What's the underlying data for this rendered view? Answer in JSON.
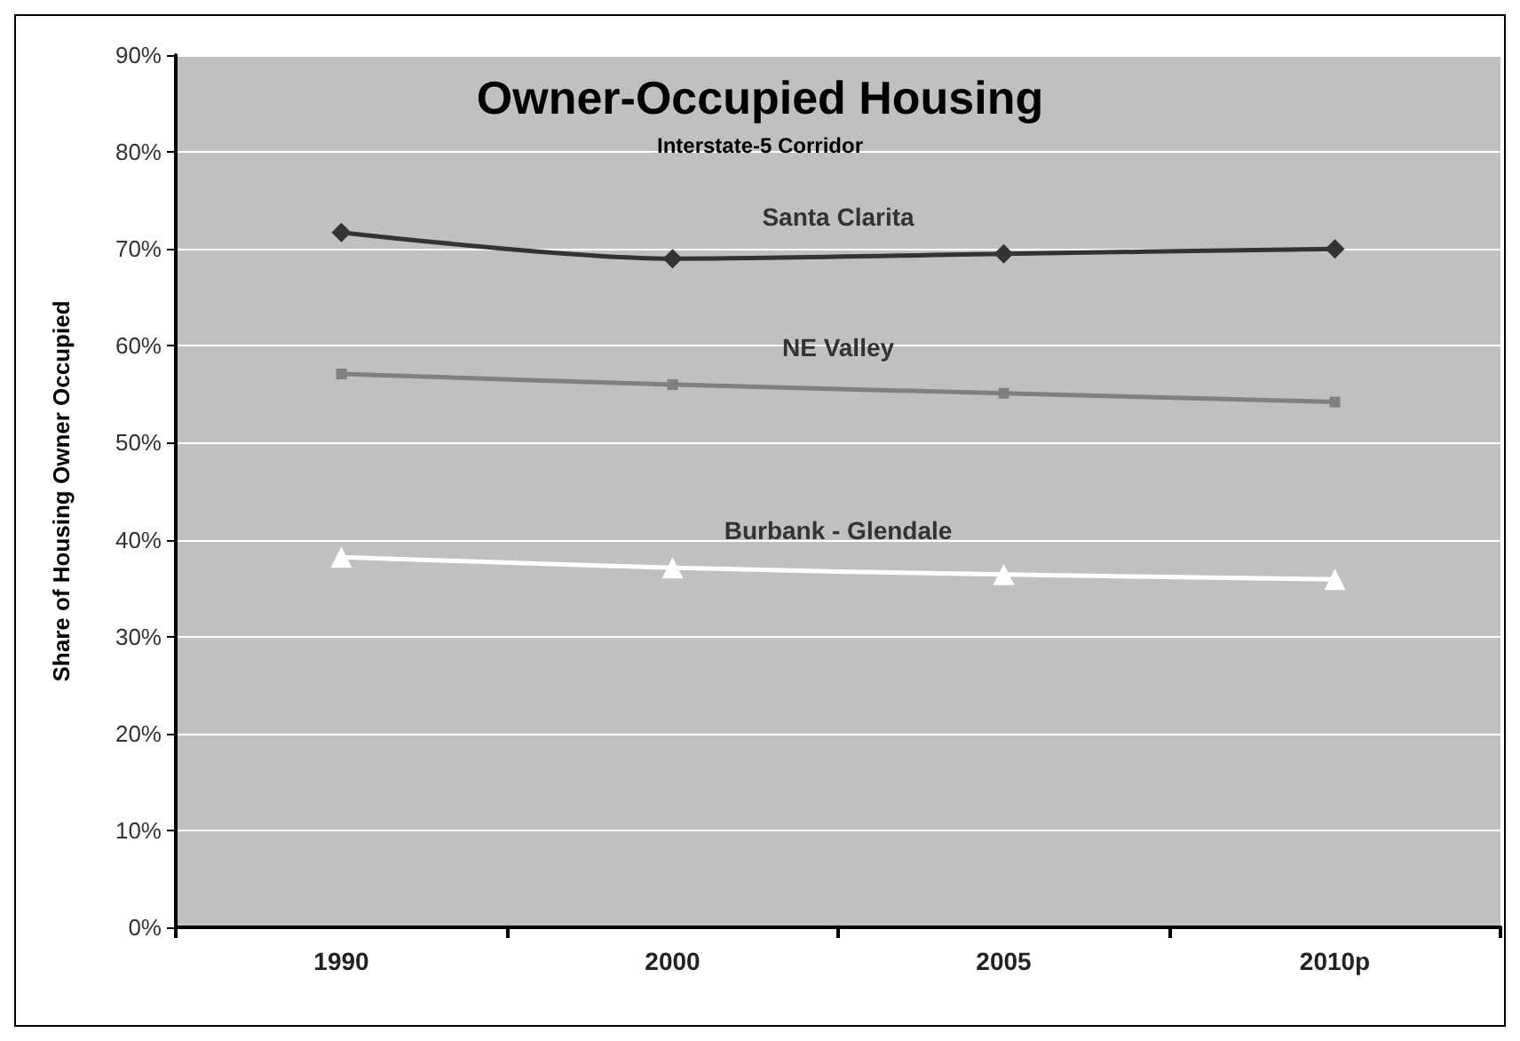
{
  "chart_data": {
    "type": "line",
    "title": "Owner-Occupied Housing",
    "subtitle": "Interstate-5 Corridor",
    "ylabel": "Share of Housing Owner Occupied",
    "categories": [
      "1990",
      "2000",
      "2005",
      "2010p"
    ],
    "series": [
      {
        "name": "Santa Clarita",
        "color": "#333333",
        "marker": "diamond",
        "values": [
          71.7,
          69.0,
          69.5,
          70.0
        ]
      },
      {
        "name": "NE Valley",
        "color": "#808080",
        "marker": "square",
        "values": [
          57.1,
          56.0,
          55.1,
          54.2
        ]
      },
      {
        "name": "Burbank - Glendale",
        "color": "#ffffff",
        "marker": "triangle",
        "values": [
          38.2,
          37.1,
          36.4,
          35.9
        ]
      }
    ],
    "ylim": [
      0,
      90
    ],
    "yticks": [
      {
        "value": 0,
        "label": "0%"
      },
      {
        "value": 10,
        "label": "10%"
      },
      {
        "value": 20,
        "label": "20%"
      },
      {
        "value": 30,
        "label": "30%"
      },
      {
        "value": 40,
        "label": "40%"
      },
      {
        "value": 50,
        "label": "50%"
      },
      {
        "value": 60,
        "label": "60%"
      },
      {
        "value": 70,
        "label": "70%"
      },
      {
        "value": 80,
        "label": "80%"
      },
      {
        "value": 90,
        "label": "90%"
      }
    ],
    "grid": "y",
    "legend": false,
    "line_style": "solid"
  }
}
